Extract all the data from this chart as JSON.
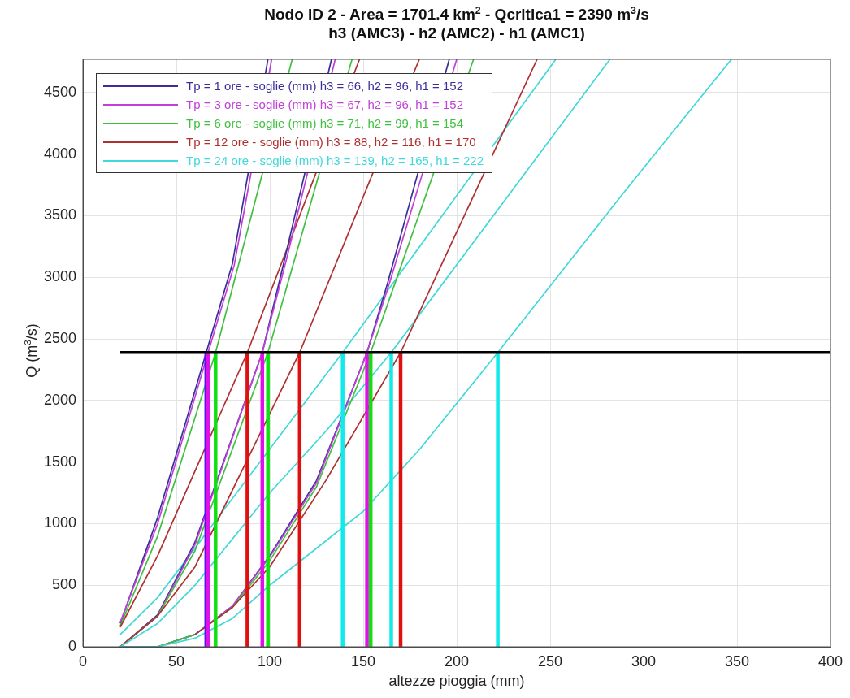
{
  "chart_data": {
    "type": "line",
    "title": "Nodo ID 2 - Area = 1701.4 km$^{2}$ - Qcritica1 = 2390 m$^{3}$/s",
    "subtitle": "h3 (AMC3) - h2 (AMC2) - h1 (AMC1)",
    "xlabel": "altezze pioggia (mm)",
    "ylabel": "Q (m$^{3}$/s)",
    "xlim": [
      0,
      400
    ],
    "xticks": [
      0,
      50,
      100,
      150,
      200,
      250,
      300,
      350,
      400
    ],
    "ylim": [
      0,
      4770
    ],
    "yticks": [
      0,
      500,
      1000,
      1500,
      2000,
      2500,
      3000,
      3500,
      4000,
      4500
    ],
    "grid": true,
    "legend": "top left",
    "series": [
      {
        "name": "Tp = 1 ore - soglie (mm) h3 = 66, h2 = 96, h1 = 152",
        "color": "#3a2f9a",
        "x": [
          20,
          40,
          66,
          80,
          99
        ],
        "values": [
          190,
          1050,
          2390,
          3110,
          4770
        ]
      },
      {
        "name": "Tp = 3 ore - soglie (mm) h3 = 67, h2 = 96, h1 = 152",
        "color": "#c040d8",
        "x": [
          20,
          40,
          67,
          81,
          101
        ],
        "values": [
          200,
          1000,
          2390,
          3100,
          4770
        ]
      },
      {
        "name": "Tp = 6 ore - soglie (mm) h3 = 71, h2 = 99, h1 = 154",
        "color": "#40c040",
        "x": [
          20,
          40,
          71,
          112
        ],
        "values": [
          170,
          900,
          2390,
          4770
        ]
      },
      {
        "name": "Tp = 12 ore - soglie (mm) h3 = 88, h2 = 116, h1 = 170",
        "color": "#b03030",
        "x": [
          20,
          40,
          88,
          148
        ],
        "values": [
          160,
          740,
          2390,
          4770
        ]
      },
      {
        "name": "Tp = 24 ore - soglie (mm) h3 = 139, h2 = 165, h1 = 222",
        "color": "#40d8d8",
        "x": [
          20,
          40,
          139,
          253
        ],
        "values": [
          100,
          400,
          2390,
          4770
        ]
      },
      {
        "color": "#3a2f9a",
        "x": [
          20,
          40,
          60,
          96,
          108,
          133
        ],
        "values": [
          0,
          260,
          850,
          2390,
          3150,
          4770
        ]
      },
      {
        "color": "#c040d8",
        "x": [
          20,
          40,
          60,
          96,
          109,
          135
        ],
        "values": [
          0,
          250,
          830,
          2390,
          3150,
          4770
        ]
      },
      {
        "color": "#40c040",
        "x": [
          20,
          40,
          60,
          99,
          144
        ],
        "values": [
          0,
          250,
          780,
          2390,
          4770
        ]
      },
      {
        "color": "#b03030",
        "x": [
          20,
          40,
          60,
          116,
          180
        ],
        "values": [
          0,
          250,
          650,
          2390,
          4770
        ]
      },
      {
        "color": "#40d8d8",
        "x": [
          20,
          40,
          60,
          100,
          130,
          165,
          282
        ],
        "values": [
          0,
          190,
          500,
          1250,
          1750,
          2390,
          4770
        ]
      },
      {
        "color": "#3a2f9a",
        "x": [
          20,
          40,
          60,
          80,
          100,
          125,
          152,
          163,
          196
        ],
        "values": [
          0,
          0,
          100,
          330,
          740,
          1350,
          2390,
          2950,
          4770
        ]
      },
      {
        "color": "#c040d8",
        "x": [
          20,
          40,
          60,
          80,
          100,
          125,
          152,
          164,
          200
        ],
        "values": [
          0,
          0,
          100,
          330,
          730,
          1330,
          2390,
          2950,
          4770
        ]
      },
      {
        "color": "#40c040",
        "x": [
          20,
          40,
          60,
          80,
          100,
          125,
          154,
          209
        ],
        "values": [
          0,
          0,
          100,
          320,
          700,
          1300,
          2390,
          4770
        ]
      },
      {
        "color": "#b03030",
        "x": [
          60,
          80,
          100,
          130,
          170,
          243
        ],
        "values": [
          100,
          320,
          650,
          1350,
          2390,
          4770
        ]
      },
      {
        "color": "#40d8d8",
        "x": [
          20,
          40,
          60,
          80,
          100,
          150,
          180,
          222,
          290,
          347
        ],
        "values": [
          0,
          0,
          70,
          230,
          500,
          1100,
          1600,
          2390,
          3700,
          4770
        ]
      },
      {
        "color": "#5a10f0",
        "x": [
          66,
          66
        ],
        "values": [
          0,
          2390
        ]
      },
      {
        "color": "#e010e8",
        "x": [
          67,
          67
        ],
        "values": [
          0,
          2390
        ]
      },
      {
        "color": "#10e010",
        "x": [
          71,
          71
        ],
        "values": [
          0,
          2390
        ]
      },
      {
        "color": "#e01010",
        "x": [
          88,
          88
        ],
        "values": [
          0,
          2390
        ]
      },
      {
        "color": "#10eaea",
        "x": [
          139,
          139
        ],
        "values": [
          0,
          2390
        ]
      },
      {
        "color": "#e010e8",
        "x": [
          96,
          96
        ],
        "values": [
          0,
          2390
        ]
      },
      {
        "color": "#10e010",
        "x": [
          99,
          99
        ],
        "values": [
          0,
          2390
        ]
      },
      {
        "color": "#e01010",
        "x": [
          116,
          116
        ],
        "values": [
          0,
          2390
        ]
      },
      {
        "color": "#10eaea",
        "x": [
          165,
          165
        ],
        "values": [
          0,
          2390
        ]
      },
      {
        "color": "#e010e8",
        "x": [
          152,
          152
        ],
        "values": [
          0,
          2390
        ]
      },
      {
        "color": "#10e010",
        "x": [
          154,
          154
        ],
        "values": [
          0,
          2390
        ]
      },
      {
        "color": "#e01010",
        "x": [
          170,
          170
        ],
        "values": [
          0,
          2390
        ]
      },
      {
        "color": "#10eaea",
        "x": [
          222,
          222
        ],
        "values": [
          0,
          2390
        ]
      },
      {
        "color": "#000000",
        "x": [
          20,
          400
        ],
        "values": [
          2390,
          2390
        ]
      }
    ]
  }
}
